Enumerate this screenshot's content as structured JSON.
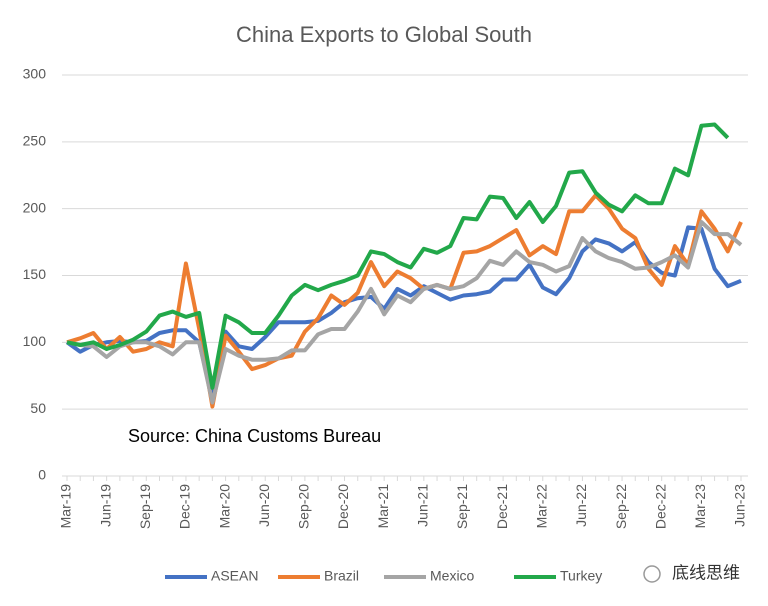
{
  "chart_data": {
    "type": "line",
    "title": "China Exports to Global South",
    "annotation": "Source: China Customs Bureau",
    "watermark": "底线思维",
    "categories": [
      "Mar-19",
      null,
      null,
      "Jun-19",
      null,
      null,
      "Sep-19",
      null,
      null,
      "Dec-19",
      null,
      null,
      "Mar-20",
      null,
      null,
      "Jun-20",
      null,
      null,
      "Sep-20",
      null,
      null,
      "Dec-20",
      null,
      null,
      "Mar-21",
      null,
      null,
      "Jun-21",
      null,
      null,
      "Sep-21",
      null,
      null,
      "Dec-21",
      null,
      null,
      "Mar-22",
      null,
      null,
      "Jun-22",
      null,
      null,
      "Sep-22",
      null,
      null,
      "Dec-22",
      null,
      null,
      "Mar-23",
      null,
      null,
      "Jun-23"
    ],
    "series": [
      {
        "name": "ASEAN",
        "color": "#4472c4",
        "values": [
          100,
          93,
          98,
          100,
          101,
          100,
          101,
          107,
          109,
          109,
          100,
          58,
          108,
          97,
          95,
          104,
          115,
          115,
          115,
          116,
          122,
          130,
          133,
          134,
          125,
          140,
          135,
          142,
          137,
          132,
          135,
          136,
          138,
          147,
          147,
          158,
          141,
          136,
          148,
          168,
          177,
          174,
          168,
          175,
          160,
          152,
          150,
          186,
          185,
          155,
          142,
          146
        ]
      },
      {
        "name": "Brazil",
        "color": "#ed7d31",
        "values": [
          100,
          103,
          107,
          95,
          104,
          93,
          95,
          100,
          97,
          159,
          110,
          52,
          105,
          93,
          80,
          83,
          88,
          90,
          108,
          118,
          135,
          128,
          137,
          160,
          142,
          153,
          148,
          140,
          143,
          140,
          167,
          168,
          172,
          178,
          184,
          165,
          172,
          166,
          198,
          198,
          210,
          200,
          185,
          178,
          155,
          143,
          172,
          158,
          198,
          185,
          168,
          190
        ]
      },
      {
        "name": "Mexico",
        "color": "#a5a5a5",
        "values": [
          100,
          98,
          97,
          89,
          97,
          100,
          100,
          97,
          91,
          100,
          100,
          55,
          95,
          90,
          87,
          87,
          88,
          94,
          94,
          106,
          110,
          110,
          123,
          140,
          121,
          135,
          130,
          140,
          143,
          140,
          142,
          148,
          161,
          158,
          168,
          160,
          158,
          153,
          157,
          178,
          168,
          163,
          160,
          155,
          156,
          160,
          165,
          156,
          190,
          181,
          181,
          173
        ]
      },
      {
        "name": "Turkey",
        "color": "#22a84a",
        "values": [
          100,
          98,
          100,
          95,
          98,
          102,
          108,
          120,
          123,
          119,
          122,
          66,
          120,
          115,
          107,
          107,
          120,
          135,
          143,
          139,
          143,
          146,
          150,
          168,
          166,
          160,
          156,
          170,
          167,
          172,
          193,
          192,
          209,
          208,
          193,
          205,
          190,
          202,
          227,
          228,
          212,
          203,
          198,
          210,
          204,
          204,
          230,
          225,
          262,
          263,
          253,
          null
        ]
      }
    ],
    "ylim": [
      0,
      300
    ],
    "yticks": [
      0,
      50,
      100,
      150,
      200,
      250,
      300
    ],
    "grid": true
  }
}
